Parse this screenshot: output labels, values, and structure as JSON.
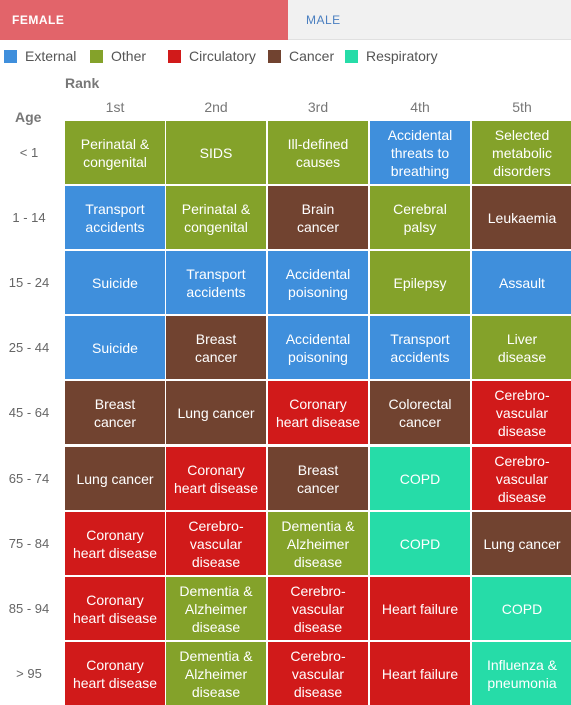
{
  "tabs": {
    "female_label": "FEMALE",
    "male_label": "MALE",
    "active": "FEMALE"
  },
  "legend": [
    {
      "label": "External",
      "color": "#3f8fdc"
    },
    {
      "label": "Other",
      "color": "#84a22a"
    },
    {
      "label": "Circulatory",
      "color": "#d11a1a"
    },
    {
      "label": "Cancer",
      "color": "#714330"
    },
    {
      "label": "Respiratory",
      "color": "#26dca8"
    }
  ],
  "chart_data": {
    "type": "table",
    "col_axis_label": "Rank",
    "row_axis_label": "Age",
    "columns": [
      "1st",
      "2nd",
      "3rd",
      "4th",
      "5th"
    ],
    "rows": [
      {
        "age": "< 1",
        "cells": [
          {
            "text": "Perinatal &\ncongenital",
            "category": "Other"
          },
          {
            "text": "SIDS",
            "category": "Other"
          },
          {
            "text": "Ill-defined\ncauses",
            "category": "Other"
          },
          {
            "text": "Accidental\nthreats to\nbreathing",
            "category": "External"
          },
          {
            "text": "Selected\nmetabolic\ndisorders",
            "category": "Other"
          }
        ]
      },
      {
        "age": "1 - 14",
        "cells": [
          {
            "text": "Transport\naccidents",
            "category": "External"
          },
          {
            "text": "Perinatal &\ncongenital",
            "category": "Other"
          },
          {
            "text": "Brain\ncancer",
            "category": "Cancer"
          },
          {
            "text": "Cerebral\npalsy",
            "category": "Other"
          },
          {
            "text": "Leukaemia",
            "category": "Cancer"
          }
        ]
      },
      {
        "age": "15 - 24",
        "cells": [
          {
            "text": "Suicide",
            "category": "External"
          },
          {
            "text": "Transport\naccidents",
            "category": "External"
          },
          {
            "text": "Accidental\npoisoning",
            "category": "External"
          },
          {
            "text": "Epilepsy",
            "category": "Other"
          },
          {
            "text": "Assault",
            "category": "External"
          }
        ]
      },
      {
        "age": "25 - 44",
        "cells": [
          {
            "text": "Suicide",
            "category": "External"
          },
          {
            "text": "Breast\ncancer",
            "category": "Cancer"
          },
          {
            "text": "Accidental\npoisoning",
            "category": "External"
          },
          {
            "text": "Transport\naccidents",
            "category": "External"
          },
          {
            "text": "Liver\ndisease",
            "category": "Other"
          }
        ]
      },
      {
        "age": "45 - 64",
        "cells": [
          {
            "text": "Breast\ncancer",
            "category": "Cancer"
          },
          {
            "text": "Lung cancer",
            "category": "Cancer"
          },
          {
            "text": "Coronary\nheart disease",
            "category": "Circulatory"
          },
          {
            "text": "Colorectal\ncancer",
            "category": "Cancer"
          },
          {
            "text": "Cerebro-\nvascular\ndisease",
            "category": "Circulatory"
          }
        ]
      },
      {
        "age": "65 - 74",
        "cells": [
          {
            "text": "Lung cancer",
            "category": "Cancer"
          },
          {
            "text": "Coronary\nheart disease",
            "category": "Circulatory"
          },
          {
            "text": "Breast\ncancer",
            "category": "Cancer"
          },
          {
            "text": "COPD",
            "category": "Respiratory"
          },
          {
            "text": "Cerebro-\nvascular\ndisease",
            "category": "Circulatory"
          }
        ]
      },
      {
        "age": "75 - 84",
        "cells": [
          {
            "text": "Coronary\nheart disease",
            "category": "Circulatory"
          },
          {
            "text": "Cerebro-\nvascular\ndisease",
            "category": "Circulatory"
          },
          {
            "text": "Dementia &\nAlzheimer\ndisease",
            "category": "Other"
          },
          {
            "text": "COPD",
            "category": "Respiratory"
          },
          {
            "text": "Lung cancer",
            "category": "Cancer"
          }
        ]
      },
      {
        "age": "85 - 94",
        "cells": [
          {
            "text": "Coronary\nheart disease",
            "category": "Circulatory"
          },
          {
            "text": "Dementia &\nAlzheimer\ndisease",
            "category": "Other"
          },
          {
            "text": "Cerebro-\nvascular\ndisease",
            "category": "Circulatory"
          },
          {
            "text": "Heart failure",
            "category": "Circulatory"
          },
          {
            "text": "COPD",
            "category": "Respiratory"
          }
        ]
      },
      {
        "age": "> 95",
        "cells": [
          {
            "text": "Coronary\nheart disease",
            "category": "Circulatory"
          },
          {
            "text": "Dementia &\nAlzheimer\ndisease",
            "category": "Other"
          },
          {
            "text": "Cerebro-\nvascular\ndisease",
            "category": "Circulatory"
          },
          {
            "text": "Heart failure",
            "category": "Circulatory"
          },
          {
            "text": "Influenza &\npneumonia",
            "category": "Respiratory"
          }
        ]
      }
    ]
  }
}
